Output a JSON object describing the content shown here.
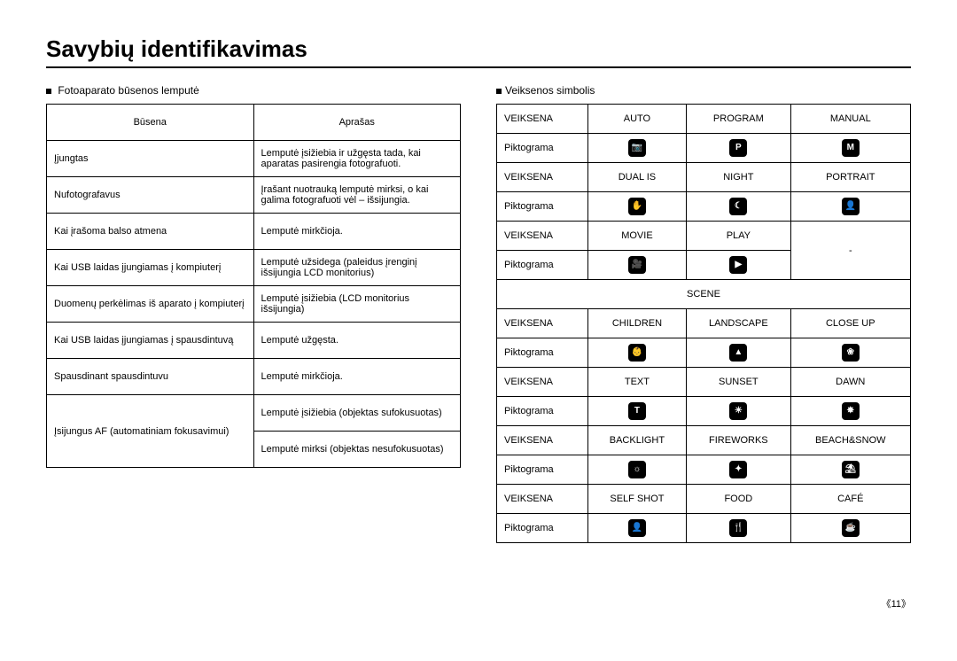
{
  "title": "Savybių identifikavimas",
  "left": {
    "heading": "Fotoaparato būsenos lemputė",
    "header": {
      "c0": "Būsena",
      "c1": "Aprašas"
    },
    "rows": [
      {
        "c0": "Įjungtas",
        "c1": "Lemputė įsižiebia ir užgęsta tada, kai aparatas pasirengia fotografuoti."
      },
      {
        "c0": "Nufotografavus",
        "c1": "Įrašant nuotrauką lemputė mirksi, o kai galima fotografuoti vėl – išsijungia."
      },
      {
        "c0": "Kai įrašoma balso atmena",
        "c1": "Lemputė mirkčioja."
      },
      {
        "c0": "Kai USB laidas įjungiamas į kompiuterį",
        "c1": "Lemputė užsidega (paleidus įrenginį išsijungia LCD monitorius)"
      },
      {
        "c0": "Duomenų perkėlimas iš aparato į kompiuterį",
        "c1": "Lemputė įsižiebia (LCD monitorius išsijungia)"
      },
      {
        "c0": "Kai USB laidas įjungiamas į spausdintuvą",
        "c1": "Lemputė užgęsta."
      },
      {
        "c0": "Spausdinant spausdintuvu",
        "c1": "Lemputė mirkčioja."
      },
      {
        "c0": "Įsijungus AF (automatiniam fokusavimui)",
        "c1a": "Lemputė įsižiebia (objektas sufokusuotas)",
        "c1b": "Lemputė mirksi (objektas nesufokusuotas)"
      }
    ]
  },
  "right": {
    "heading": "Veiksenos simbolis",
    "labels": {
      "mode": "VEIKSENA",
      "icon": "Piktograma",
      "scene": "SCENE"
    },
    "group1": [
      {
        "m": [
          "AUTO",
          "PROGRAM",
          "MANUAL"
        ],
        "i": [
          "📷",
          "P",
          "M"
        ]
      },
      {
        "m": [
          "DUAL IS",
          "NIGHT",
          "PORTRAIT"
        ],
        "i": [
          "✋",
          "☾",
          "👤"
        ]
      },
      {
        "m": [
          "MOVIE",
          "PLAY",
          ""
        ],
        "i": [
          "🎥",
          "▶",
          "-"
        ]
      }
    ],
    "group2": [
      {
        "m": [
          "CHILDREN",
          "LANDSCAPE",
          "CLOSE UP"
        ],
        "i": [
          "👶",
          "▲",
          "❀"
        ]
      },
      {
        "m": [
          "TEXT",
          "SUNSET",
          "DAWN"
        ],
        "i": [
          "T",
          "☀",
          "✸"
        ]
      },
      {
        "m": [
          "BACKLIGHT",
          "FIREWORKS",
          "BEACH&SNOW"
        ],
        "i": [
          "☼",
          "✦",
          "⛱"
        ]
      },
      {
        "m": [
          "SELF SHOT",
          "FOOD",
          "CAFÉ"
        ],
        "i": [
          "👤",
          "🍴",
          "☕"
        ]
      }
    ]
  },
  "page_number": "《11》"
}
